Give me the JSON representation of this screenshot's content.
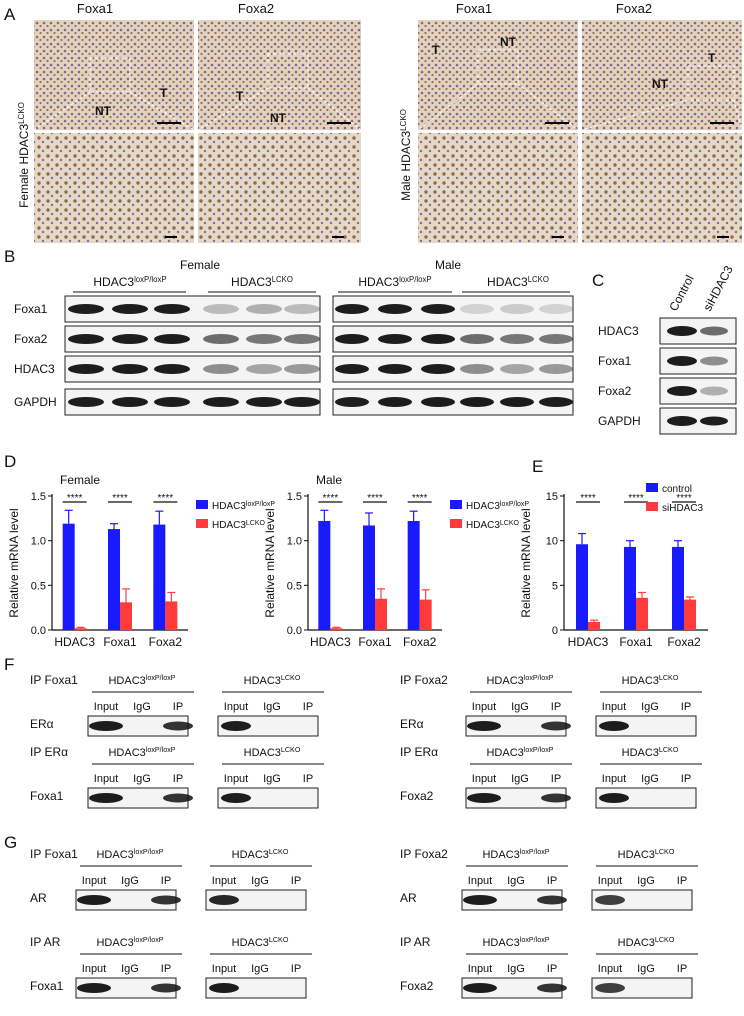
{
  "panel_letters": [
    "A",
    "B",
    "C",
    "D",
    "E",
    "F",
    "G"
  ],
  "panelA": {
    "side_labels": {
      "female_prefix": "Female HDAC3",
      "male_prefix": "Male HDAC3",
      "sup": "LCKO"
    },
    "col_labels": [
      "Foxa1",
      "Foxa2",
      "Foxa1",
      "Foxa2"
    ],
    "tissue_labels": {
      "t": "T",
      "nt": "NT"
    }
  },
  "panelB": {
    "groups": [
      {
        "title": "Female"
      },
      {
        "title": "Male"
      }
    ],
    "geno": {
      "flox_base": "HDAC3",
      "flox_sup": "loxP/loxP",
      "ko_base": "HDAC3",
      "ko_sup": "LCKO"
    },
    "rows": [
      "Foxa1",
      "Foxa2",
      "HDAC3",
      "GAPDH"
    ]
  },
  "panelC": {
    "cols": [
      "Control",
      "siHDAC3"
    ],
    "rows": [
      "HDAC3",
      "Foxa1",
      "Foxa2",
      "GAPDH"
    ]
  },
  "chart_data": [
    {
      "type": "bar",
      "title": "Female",
      "ylabel": "Relative mRNA level",
      "ylim": [
        0,
        1.5
      ],
      "yticks": [
        "0.0",
        "0.5",
        "1.0",
        "1.5"
      ],
      "categories": [
        "HDAC3",
        "Foxa1",
        "Foxa2"
      ],
      "significance": [
        "****",
        "****",
        "****"
      ],
      "legend": [
        "HDAC3",
        "HDAC3"
      ],
      "legend_sup": [
        "loxP/loxP",
        "LCKO"
      ],
      "series": [
        {
          "name": "HDAC3 loxP/loxP",
          "color": "#1a1aff",
          "values": [
            1.19,
            1.13,
            1.18
          ],
          "errors": [
            0.15,
            0.06,
            0.15
          ]
        },
        {
          "name": "HDAC3 LCKO",
          "color": "#ff3b3b",
          "values": [
            0.02,
            0.31,
            0.32
          ],
          "errors": [
            0.01,
            0.15,
            0.1
          ]
        }
      ]
    },
    {
      "type": "bar",
      "title": "Male",
      "ylabel": "Relative mRNA level",
      "ylim": [
        0,
        1.5
      ],
      "yticks": [
        "0.0",
        "0.5",
        "1.0",
        "1.5"
      ],
      "categories": [
        "HDAC3",
        "Foxa1",
        "Foxa2"
      ],
      "significance": [
        "****",
        "****",
        "****"
      ],
      "legend": [
        "HDAC3",
        "HDAC3"
      ],
      "legend_sup": [
        "loxP/loxP",
        "LCKO"
      ],
      "series": [
        {
          "name": "HDAC3 loxP/loxP",
          "color": "#1a1aff",
          "values": [
            1.22,
            1.17,
            1.22
          ],
          "errors": [
            0.12,
            0.14,
            0.11
          ]
        },
        {
          "name": "HDAC3 LCKO",
          "color": "#ff3b3b",
          "values": [
            0.02,
            0.35,
            0.34
          ],
          "errors": [
            0.01,
            0.11,
            0.11
          ]
        }
      ]
    },
    {
      "type": "bar",
      "title": "",
      "ylabel": "Relative mRNA level",
      "ylim": [
        0,
        15
      ],
      "yticks": [
        "0",
        "5",
        "10",
        "15"
      ],
      "categories": [
        "HDAC3",
        "Foxa1",
        "Foxa2"
      ],
      "significance": [
        "****",
        "****",
        "****"
      ],
      "legend": [
        "control",
        "siHDAC3"
      ],
      "legend_sup": [
        "",
        ""
      ],
      "series": [
        {
          "name": "control",
          "color": "#1a1aff",
          "values": [
            9.6,
            9.3,
            9.3
          ],
          "errors": [
            1.2,
            0.7,
            0.7
          ]
        },
        {
          "name": "siHDAC3",
          "color": "#ff3b3b",
          "values": [
            0.9,
            3.6,
            3.4
          ],
          "errors": [
            0.2,
            0.6,
            0.3
          ]
        }
      ]
    }
  ],
  "panelF": {
    "blocks": [
      {
        "ip": "IP Foxa1",
        "blot": "ERα"
      },
      {
        "ip": "IP Foxa2",
        "blot": "ERα"
      },
      {
        "ip": "IP ERα",
        "blot": "Foxa1"
      },
      {
        "ip": "IP ERα",
        "blot": "Foxa2"
      }
    ]
  },
  "panelG": {
    "blocks": [
      {
        "ip": "IP Foxa1",
        "blot": "AR"
      },
      {
        "ip": "IP Foxa2",
        "blot": "AR"
      },
      {
        "ip": "IP AR",
        "blot": "Foxa1"
      },
      {
        "ip": "IP AR",
        "blot": "Foxa2"
      }
    ]
  },
  "ip_lanes": [
    "Input",
    "IgG",
    "IP"
  ],
  "ip_geno": {
    "flox_base": "HDAC3",
    "flox_sup": "loxP/loxP",
    "ko_base": "HDAC3",
    "ko_sup": "LCKO"
  }
}
